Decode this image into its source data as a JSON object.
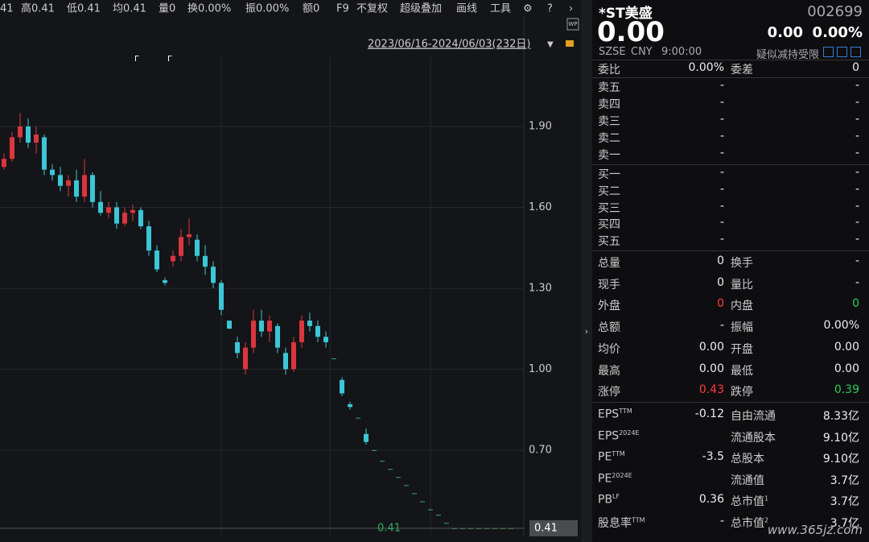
{
  "toolbar": {
    "stats": [
      "41",
      "高0.41",
      "低0.41",
      "均0.41",
      "量0",
      "换0.00%",
      "振0.00%",
      "额0"
    ],
    "tools": [
      "F9",
      "不复权",
      "超级叠加",
      "画线",
      "工具"
    ],
    "range": "2023/06/16-2024/06/03(232日)",
    "badge": "WP"
  },
  "chart_data": {
    "type": "candlestick",
    "ylim": [
      0.383,
      2.16
    ],
    "yticks": [
      {
        "value": 1.9,
        "label": "1.90"
      },
      {
        "value": 1.6,
        "label": "1.60"
      },
      {
        "value": 1.3,
        "label": "1.30"
      },
      {
        "value": 1.0,
        "label": "1.00"
      },
      {
        "value": 0.7,
        "label": "0.70"
      }
    ],
    "last": 0.41,
    "up_color": "#d9363e",
    "down_color": "#3cc6d6",
    "flat_color": "#2fae63",
    "highlight_color": "#f2f05a",
    "candles": [
      [
        1.75,
        1.8,
        1.74,
        1.78
      ],
      [
        1.78,
        1.88,
        1.77,
        1.86
      ],
      [
        1.86,
        1.95,
        1.84,
        1.9
      ],
      [
        1.9,
        1.93,
        1.82,
        1.84
      ],
      [
        1.84,
        1.9,
        1.8,
        1.87
      ],
      [
        1.86,
        1.87,
        1.72,
        1.74
      ],
      [
        1.74,
        1.76,
        1.7,
        1.72
      ],
      [
        1.72,
        1.75,
        1.66,
        1.68
      ],
      [
        1.68,
        1.72,
        1.64,
        1.7
      ],
      [
        1.7,
        1.74,
        1.62,
        1.64
      ],
      [
        1.64,
        1.78,
        1.62,
        1.72
      ],
      [
        1.72,
        1.73,
        1.6,
        1.62
      ],
      [
        1.62,
        1.66,
        1.57,
        1.58
      ],
      [
        1.58,
        1.62,
        1.56,
        1.6
      ],
      [
        1.6,
        1.62,
        1.52,
        1.54
      ],
      [
        1.54,
        1.6,
        1.53,
        1.58
      ],
      [
        1.58,
        1.61,
        1.55,
        1.59
      ],
      [
        1.59,
        1.6,
        1.52,
        1.53
      ],
      [
        1.53,
        1.55,
        1.42,
        1.44
      ],
      [
        1.44,
        1.46,
        1.36,
        1.37
      ],
      [
        1.33,
        1.34,
        1.31,
        1.32
      ],
      [
        1.4,
        1.44,
        1.38,
        1.42
      ],
      [
        1.42,
        1.52,
        1.4,
        1.49
      ],
      [
        1.49,
        1.56,
        1.46,
        1.5
      ],
      [
        1.48,
        1.5,
        1.4,
        1.42
      ],
      [
        1.42,
        1.46,
        1.35,
        1.38
      ],
      [
        1.38,
        1.4,
        1.3,
        1.32
      ],
      [
        1.32,
        1.33,
        1.2,
        1.22
      ],
      [
        1.18,
        1.18,
        1.15,
        1.15
      ],
      [
        1.1,
        1.12,
        1.04,
        1.06
      ],
      [
        1.0,
        1.1,
        0.98,
        1.08
      ],
      [
        1.08,
        1.22,
        1.06,
        1.18
      ],
      [
        1.18,
        1.22,
        1.12,
        1.14
      ],
      [
        1.14,
        1.2,
        1.1,
        1.18
      ],
      [
        1.16,
        1.17,
        1.06,
        1.08
      ],
      [
        1.06,
        1.08,
        0.98,
        1.0
      ],
      [
        1.0,
        1.12,
        0.99,
        1.1
      ],
      [
        1.1,
        1.2,
        1.08,
        1.18
      ],
      [
        1.18,
        1.21,
        1.14,
        1.16
      ],
      [
        1.16,
        1.18,
        1.1,
        1.12
      ],
      [
        1.12,
        1.14,
        1.08,
        1.1
      ],
      [
        1.04,
        1.04,
        1.04,
        1.04
      ],
      [
        0.96,
        0.97,
        0.9,
        0.91
      ],
      [
        0.87,
        0.88,
        0.85,
        0.86
      ],
      [
        0.82,
        0.82,
        0.82,
        0.82
      ],
      [
        0.76,
        0.78,
        0.72,
        0.73
      ],
      [
        0.7,
        0.7,
        0.7,
        0.7
      ],
      [
        0.66,
        0.66,
        0.66,
        0.66
      ],
      [
        0.63,
        0.63,
        0.63,
        0.63
      ],
      [
        0.6,
        0.6,
        0.6,
        0.6
      ],
      [
        0.57,
        0.57,
        0.57,
        0.57
      ],
      [
        0.54,
        0.54,
        0.54,
        0.54
      ],
      [
        0.51,
        0.51,
        0.51,
        0.51
      ],
      [
        0.48,
        0.48,
        0.48,
        0.48
      ],
      [
        0.46,
        0.46,
        0.46,
        0.46
      ],
      [
        0.43,
        0.43,
        0.43,
        0.43
      ],
      [
        0.41,
        0.41,
        0.41,
        0.41
      ],
      [
        0.41,
        0.41,
        0.41,
        0.41
      ],
      [
        0.41,
        0.41,
        0.41,
        0.41
      ],
      [
        0.41,
        0.41,
        0.41,
        0.41
      ],
      [
        0.41,
        0.41,
        0.41,
        0.41
      ],
      [
        0.41,
        0.41,
        0.41,
        0.41
      ],
      [
        0.41,
        0.41,
        0.41,
        0.41
      ],
      [
        0.41,
        0.41,
        0.41,
        0.41
      ]
    ]
  },
  "quote": {
    "name": "*ST美盛",
    "code": "002699",
    "price": "0.00",
    "change": "0.00",
    "change_pct": "0.00%",
    "exchange": "SZSE",
    "currency": "CNY",
    "time": "9:00:00",
    "notice": "疑似减持受限",
    "book_head": {
      "label": "委比",
      "value": "0.00%",
      "label2": "委差",
      "value2": "0"
    },
    "asks": [
      {
        "label": "卖五",
        "value": "-",
        "value2": "-"
      },
      {
        "label": "卖四",
        "value": "-",
        "value2": "-"
      },
      {
        "label": "卖三",
        "value": "-",
        "value2": "-"
      },
      {
        "label": "卖二",
        "value": "-",
        "value2": "-"
      },
      {
        "label": "卖一",
        "value": "-",
        "value2": "-"
      }
    ],
    "bids": [
      {
        "label": "买一",
        "value": "-",
        "value2": "-"
      },
      {
        "label": "买二",
        "value": "-",
        "value2": "-"
      },
      {
        "label": "买三",
        "value": "-",
        "value2": "-"
      },
      {
        "label": "买四",
        "value": "-",
        "value2": "-"
      },
      {
        "label": "买五",
        "value": "-",
        "value2": "-"
      }
    ],
    "stats": [
      {
        "label": "总量",
        "value": "0",
        "label2": "换手",
        "value2": "-"
      },
      {
        "label": "现手",
        "value": "0",
        "label2": "量比",
        "value2": "-"
      },
      {
        "label": "外盘",
        "value": "0",
        "color": "#ff3b3b",
        "label2": "内盘",
        "value2": "0",
        "color2": "#2ecc5a"
      },
      {
        "label": "总额",
        "value": "-",
        "label2": "振幅",
        "value2": "0.00%"
      },
      {
        "label": "均价",
        "value": "0.00",
        "label2": "开盘",
        "value2": "0.00"
      },
      {
        "label": "最高",
        "value": "0.00",
        "label2": "最低",
        "value2": "0.00"
      },
      {
        "label": "涨停",
        "value": "0.43",
        "color": "#ff3b3b",
        "label2": "跌停",
        "value2": "0.39",
        "color2": "#2ecc5a"
      }
    ],
    "fundamentals": [
      {
        "label": "EPS",
        "sup": "TTM",
        "value": "-0.12",
        "label2": "自由流通",
        "value2": "8.33亿"
      },
      {
        "label": "EPS",
        "sup": "2024E",
        "value": "",
        "label2": "流通股本",
        "value2": "9.10亿"
      },
      {
        "label": "PE",
        "sup": "TTM",
        "value": "-3.5",
        "label2": "总股本",
        "value2": "9.10亿"
      },
      {
        "label": "PE",
        "sup": "2024E",
        "value": "",
        "label2": "流通值",
        "value2": "3.7亿"
      },
      {
        "label": "PB",
        "sup": "LF",
        "value": "0.36",
        "label2": "总市值",
        "sup2": "1",
        "value2": "3.7亿"
      },
      {
        "label": "股息率",
        "sup": "TTM",
        "value": "-",
        "label2": "总市值",
        "sup2": "2",
        "value2": "3.7亿"
      }
    ]
  },
  "watermark": "www.365jz.com"
}
